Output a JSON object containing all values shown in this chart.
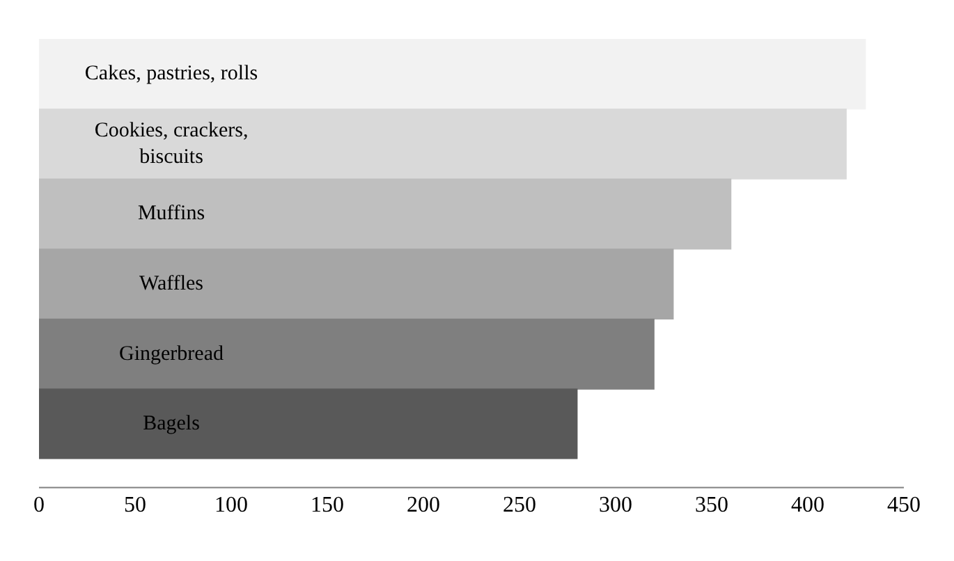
{
  "chart_data": {
    "type": "bar",
    "orientation": "horizontal",
    "categories": [
      "Cakes, pastries, rolls",
      "Cookies, crackers, biscuits",
      "Muffins",
      "Waffles",
      "Gingerbread",
      "Bagels"
    ],
    "values": [
      430,
      420,
      360,
      330,
      320,
      280
    ],
    "colors": [
      "#f2f2f2",
      "#d9d9d9",
      "#bfbfbf",
      "#a6a6a6",
      "#7f7f7f",
      "#595959"
    ],
    "xlim": [
      0,
      450
    ],
    "xticks": [
      0,
      50,
      100,
      150,
      200,
      250,
      300,
      350,
      400,
      450
    ],
    "grid": false,
    "legend": false
  }
}
